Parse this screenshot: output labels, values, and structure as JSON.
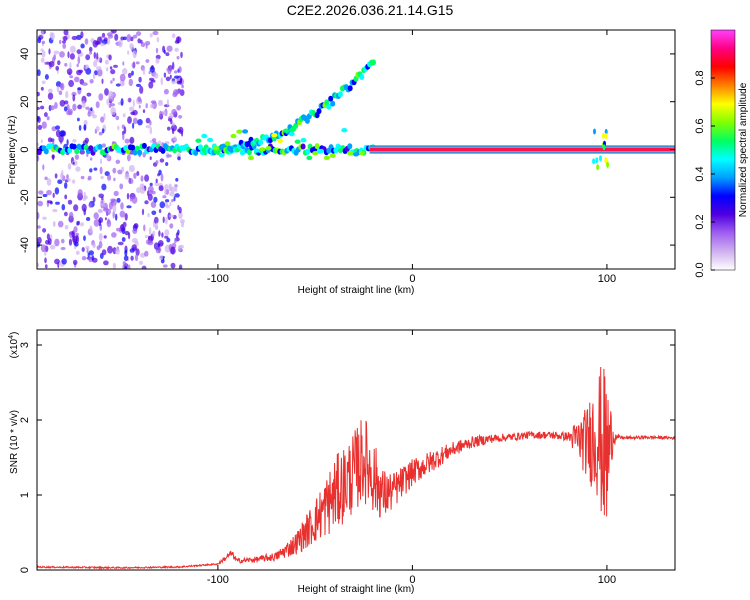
{
  "title": "C2E2.2026.036.21.14.G15",
  "chart_data": [
    {
      "type": "heatmap",
      "xlabel": "Height of straight line (km)",
      "ylabel": "Frequency (Hz)",
      "xlim": [
        -193,
        135
      ],
      "ylim": [
        -50,
        50
      ],
      "x_ticks": [
        -100,
        0,
        100
      ],
      "x_tick_labels": [
        "-100",
        "0",
        "100"
      ],
      "y_ticks": [
        -40,
        -20,
        0,
        20,
        40
      ],
      "y_tick_labels": [
        "-40",
        "-20",
        "0",
        "20",
        "40"
      ],
      "colorbar": {
        "label": "Normalized spectral amplitude",
        "range": [
          0,
          1
        ],
        "ticks": [
          0.0,
          0.2,
          0.4,
          0.6,
          0.8
        ],
        "tick_labels": [
          "0.0",
          "0.2",
          "0.4",
          "0.6",
          "0.8"
        ],
        "stops": [
          "#ffffff",
          "#d0b0f0",
          "#a060f0",
          "#5000e0",
          "#0000ff",
          "#00a0ff",
          "#00ffff",
          "#00ff60",
          "#80ff00",
          "#ffff00",
          "#ff8000",
          "#ff0000",
          "#ff0080",
          "#ff40ff"
        ]
      },
      "main_track": {
        "x_start": -22,
        "x_end": 135,
        "freq": 0,
        "amplitude": 0.9
      },
      "drifting_track": {
        "x_start": -110,
        "x_end": -20,
        "freq_start": 0,
        "freq_end": 37
      }
    },
    {
      "type": "line",
      "xlabel": "Height of straight line (km)",
      "ylabel": "SNR (10 * v/v)",
      "y_multiplier": "(x10",
      "y_multiplier_exp": "4",
      "y_multiplier_close": ")",
      "xlim": [
        -193,
        135
      ],
      "ylim": [
        0,
        3.2
      ],
      "x_ticks": [
        -100,
        0,
        100
      ],
      "x_tick_labels": [
        "-100",
        "0",
        "100"
      ],
      "y_ticks": [
        0,
        1,
        2,
        3
      ],
      "y_tick_labels": [
        "0",
        "1",
        "2",
        "3"
      ],
      "series": [
        {
          "name": "SNR",
          "color": "#e8302e",
          "x": [
            -193,
            -150,
            -120,
            -100,
            -93,
            -90,
            -80,
            -70,
            -60,
            -50,
            -40,
            -30,
            -25,
            -20,
            -15,
            -10,
            0,
            10,
            20,
            30,
            40,
            50,
            60,
            70,
            80,
            90,
            95,
            100,
            103,
            105,
            110,
            120,
            135
          ],
          "y": [
            0.04,
            0.03,
            0.04,
            0.08,
            0.22,
            0.12,
            0.14,
            0.18,
            0.35,
            0.65,
            1.0,
            1.3,
            1.5,
            1.25,
            1.0,
            1.05,
            1.3,
            1.45,
            1.6,
            1.7,
            1.75,
            1.77,
            1.8,
            1.8,
            1.78,
            1.7,
            1.85,
            1.5,
            1.8,
            1.77,
            1.76,
            1.77,
            1.76
          ],
          "noise": [
            0.01,
            0.01,
            0.01,
            0.01,
            0.05,
            0.03,
            0.04,
            0.06,
            0.15,
            0.3,
            0.5,
            0.55,
            0.6,
            0.5,
            0.35,
            0.25,
            0.18,
            0.15,
            0.1,
            0.08,
            0.06,
            0.05,
            0.05,
            0.05,
            0.06,
            0.5,
            0.9,
            1.2,
            0.2,
            0.03,
            0.02,
            0.02,
            0.02
          ]
        }
      ]
    }
  ]
}
